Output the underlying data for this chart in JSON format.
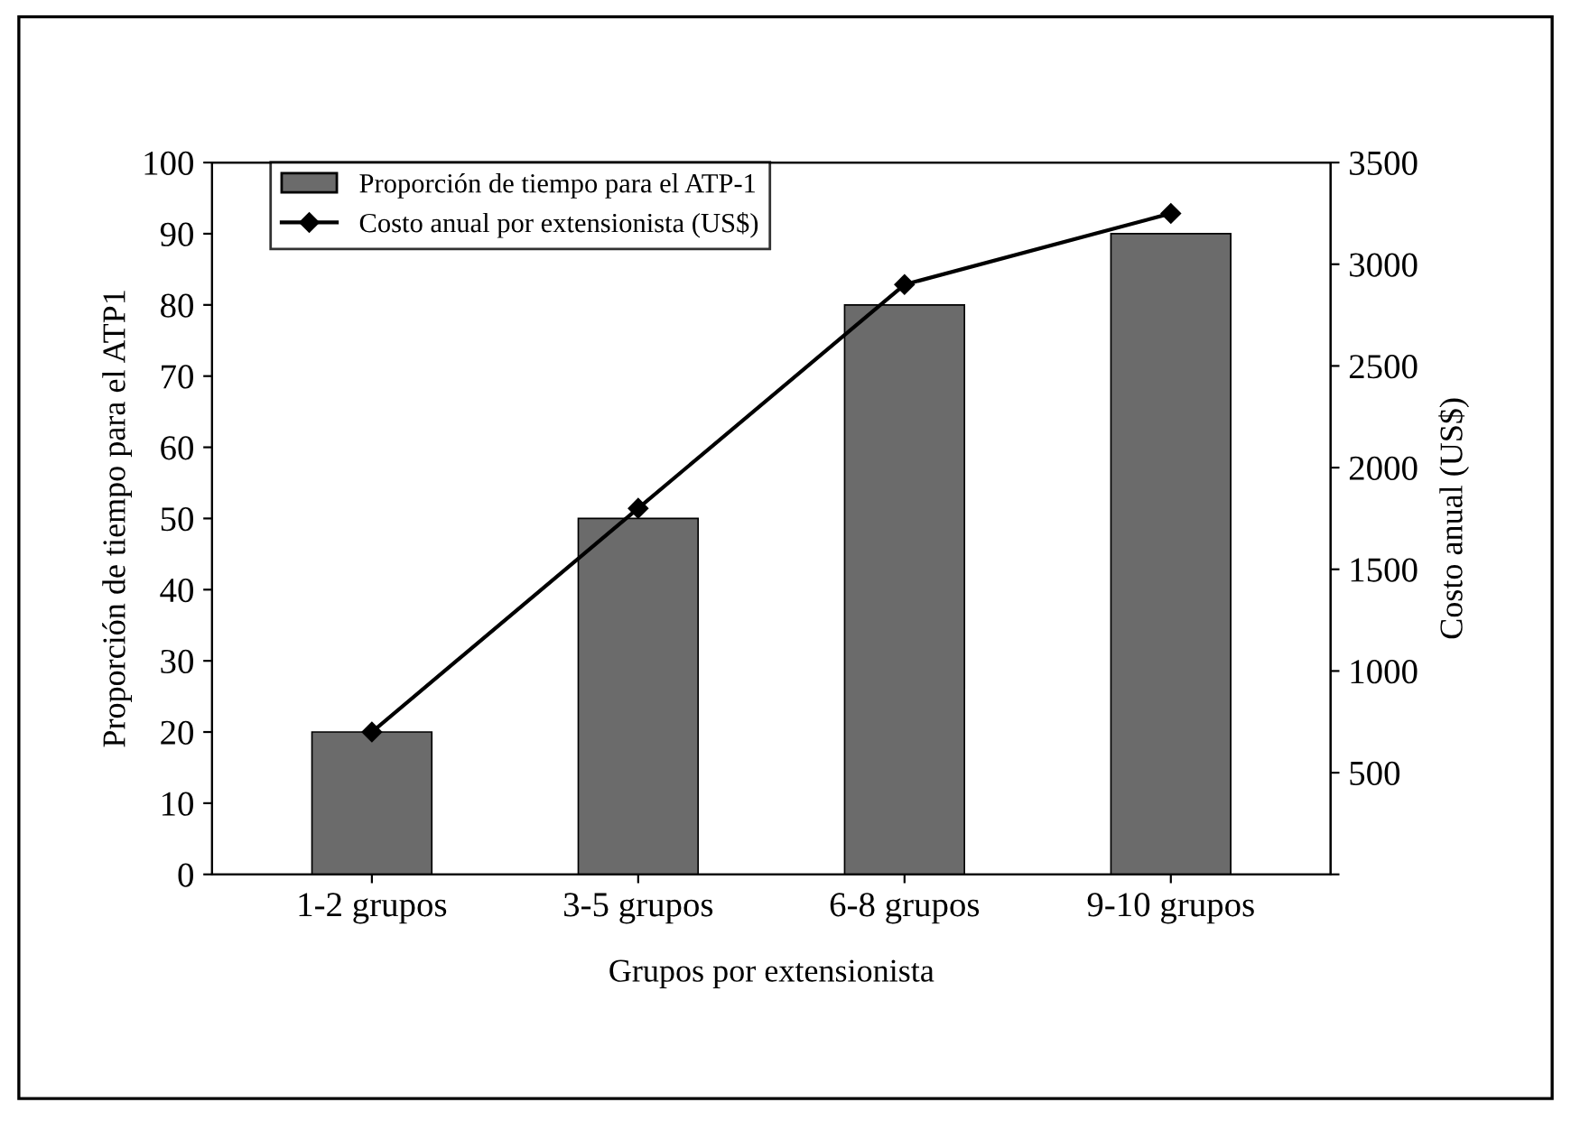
{
  "chart_data": {
    "type": "bar",
    "xlabel": "Grupos por extensionista",
    "ylabel": "Proporción de tiempo para el ATP1",
    "y2label": "Costo anual (US$)",
    "categories": [
      "1-2 grupos",
      "3-5 grupos",
      "6-8 grupos",
      "9-10 grupos"
    ],
    "series": [
      {
        "name": "Proporción de tiempo para el ATP-1",
        "color": "#6b6b6b",
        "values": [
          20,
          50,
          80,
          90
        ]
      },
      {
        "name": "Costo anual por extensionista (US$)",
        "type": "line",
        "axis": "y2",
        "color": "#000000",
        "marker": "diamond",
        "values": [
          700,
          1800,
          2900,
          3250
        ]
      }
    ],
    "ylim": [
      0,
      100
    ],
    "yticks": [
      0,
      10,
      20,
      30,
      40,
      50,
      60,
      70,
      80,
      90,
      100
    ],
    "y2lim": [
      0,
      3500
    ],
    "y2ticks": [
      {
        "value": 0,
        "label": null
      },
      500,
      1000,
      1500,
      2000,
      2500,
      3000,
      3500
    ],
    "grid": false,
    "legend": "top left"
  }
}
